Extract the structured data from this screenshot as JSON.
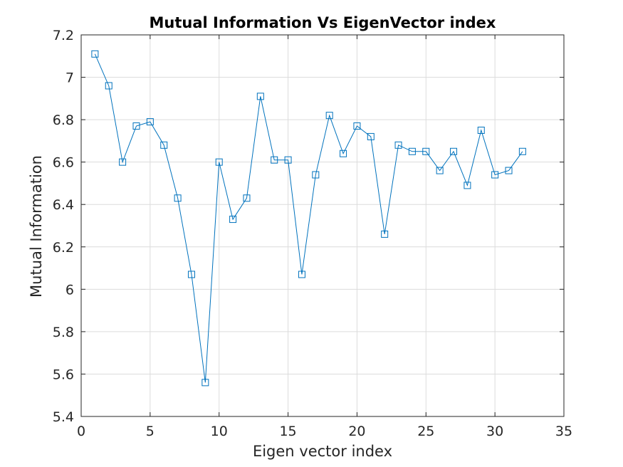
{
  "chart_data": {
    "type": "line",
    "title": "Mutual Information Vs EigenVector index",
    "xlabel": "Eigen vector index",
    "ylabel": "Mutual Information",
    "xlim": [
      0,
      35
    ],
    "ylim": [
      5.4,
      7.2
    ],
    "xticks": [
      0,
      5,
      10,
      15,
      20,
      25,
      30,
      35
    ],
    "yticks": [
      5.4,
      5.6,
      5.8,
      6,
      6.2,
      6.4,
      6.6,
      6.8,
      7,
      7.2
    ],
    "xtick_labels": [
      "0",
      "5",
      "10",
      "15",
      "20",
      "25",
      "30",
      "35"
    ],
    "ytick_labels": [
      "5.4",
      "5.6",
      "5.8",
      "6",
      "6.2",
      "6.4",
      "6.6",
      "6.8",
      "7",
      "7.2"
    ],
    "grid": true,
    "marker": "square",
    "series": [
      {
        "color": "#0072BD",
        "x": [
          1,
          2,
          3,
          4,
          5,
          6,
          7,
          8,
          9,
          10,
          11,
          12,
          13,
          14,
          15,
          16,
          17,
          18,
          19,
          20,
          21,
          22,
          23,
          24,
          25,
          26,
          27,
          28,
          29,
          30,
          31,
          32
        ],
        "y": [
          7.11,
          6.96,
          6.6,
          6.77,
          6.79,
          6.68,
          6.43,
          6.07,
          5.56,
          6.6,
          6.33,
          6.43,
          6.91,
          6.61,
          6.61,
          6.07,
          6.54,
          6.82,
          6.64,
          6.77,
          6.72,
          6.26,
          6.68,
          6.65,
          6.65,
          6.56,
          6.65,
          6.49,
          6.75,
          6.54,
          6.56,
          6.65
        ]
      }
    ]
  }
}
